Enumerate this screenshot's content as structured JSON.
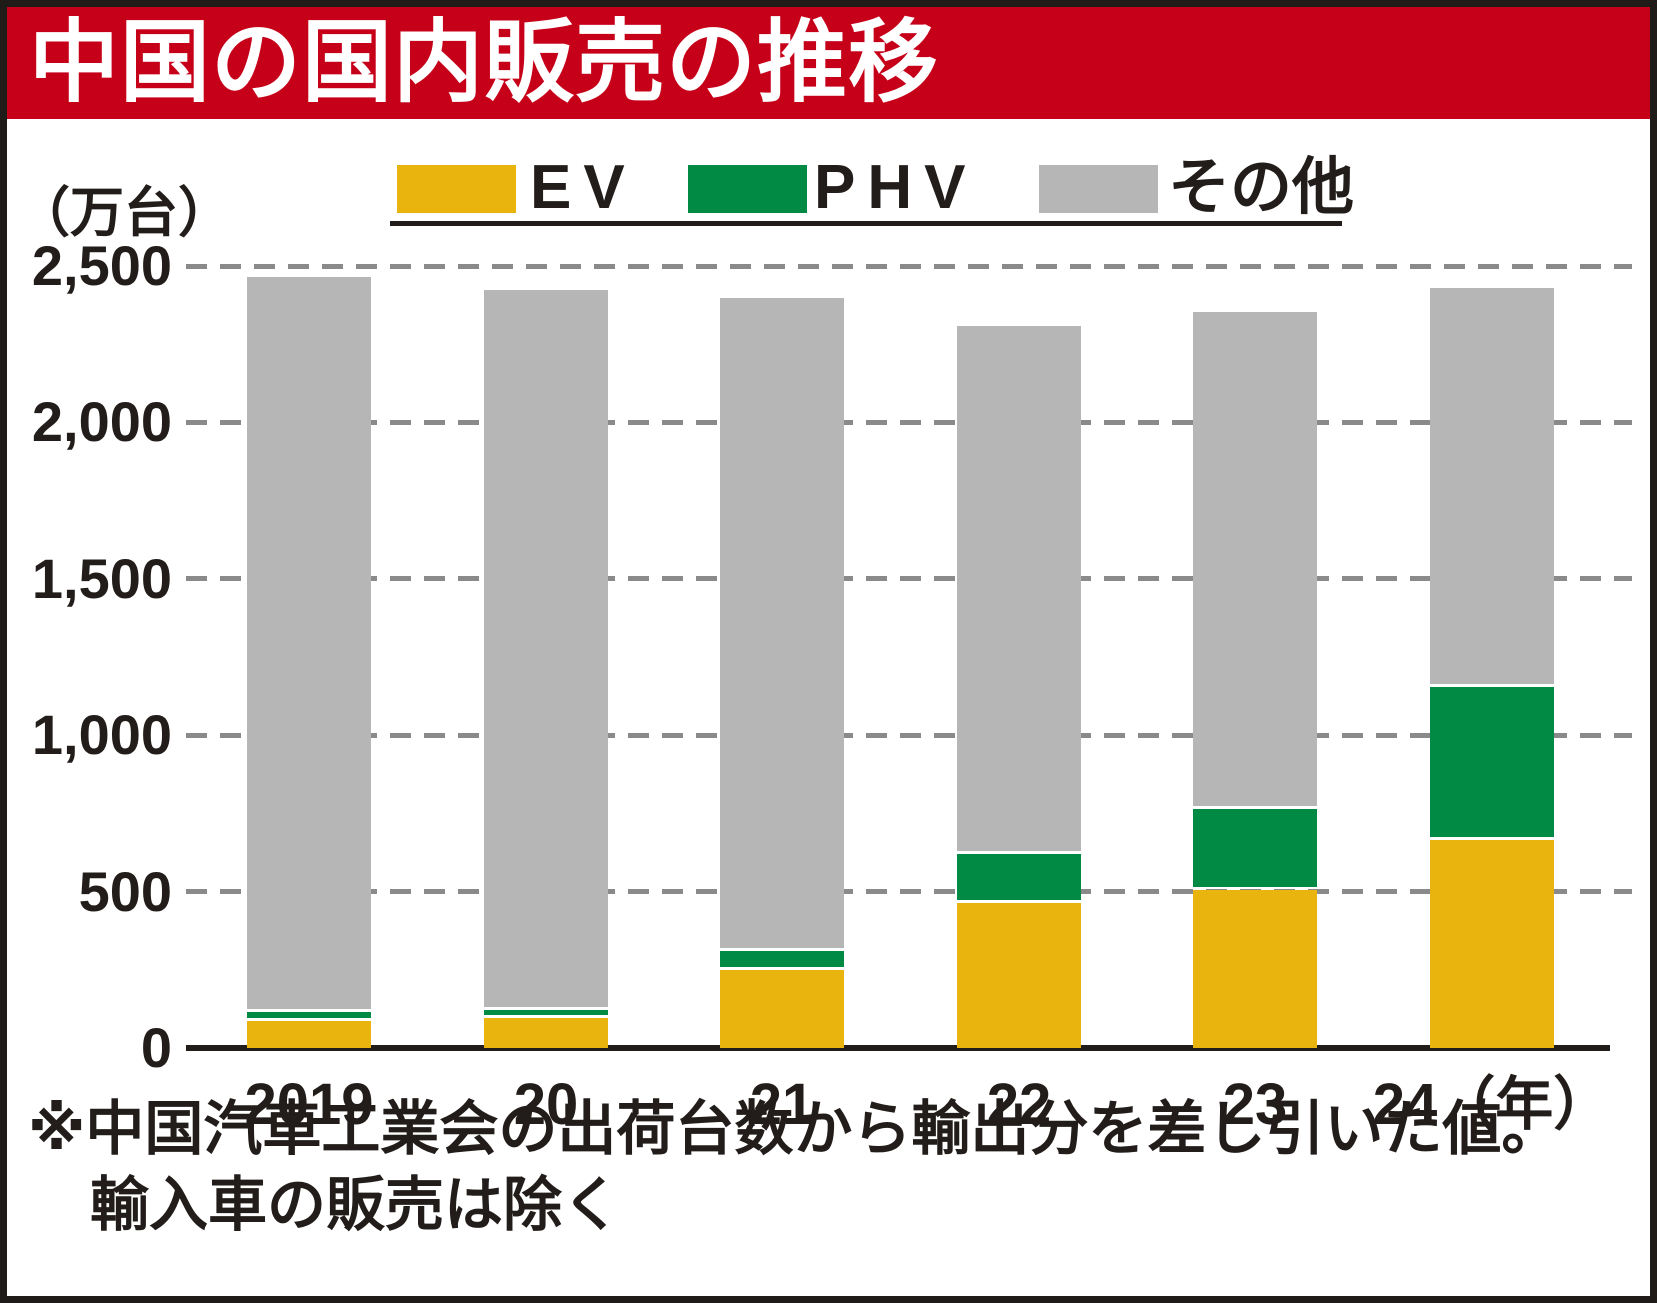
{
  "banner": {
    "title": "中国の国内販売の推移",
    "bg_color": "#C7001A",
    "text_color": "#FFFFFF"
  },
  "unit_label": "（万台）",
  "legend": {
    "items": [
      {
        "label": "EV",
        "color": "#E9B40E"
      },
      {
        "label": "PHV",
        "color": "#008A43"
      },
      {
        "label": "その他",
        "color": "#B6B6B7"
      }
    ]
  },
  "chart_data": {
    "type": "bar",
    "stacked": true,
    "title": "中国の国内販売の推移",
    "ylabel": "（万台）",
    "xlabel": "年",
    "categories": [
      "2019",
      "20",
      "21",
      "22",
      "23",
      "24（年）"
    ],
    "series": [
      {
        "name": "EV",
        "color": "#E9B40E",
        "values": [
          85,
          95,
          250,
          465,
          505,
          665
        ]
      },
      {
        "name": "PHV",
        "color": "#008A43",
        "values": [
          20,
          18,
          50,
          145,
          250,
          480
        ]
      },
      {
        "name": "その他",
        "color": "#B6B6B7",
        "values": [
          2340,
          2290,
          2080,
          1680,
          1580,
          1265
        ]
      }
    ],
    "totals": [
      2445,
      2403,
      2380,
      2290,
      2335,
      2410
    ],
    "ylim": [
      0,
      2500
    ],
    "yticks": [
      0,
      500,
      1000,
      1500,
      2000,
      2500
    ],
    "ytick_labels": [
      "0",
      "500",
      "1,000",
      "1,500",
      "2,000",
      "2,500"
    ],
    "grid": "horizontal-dashed",
    "legend_position": "top",
    "grid_color": "#8A8A8A",
    "axis_color": "#221D1A"
  },
  "footnote": {
    "line1": "※中国汽車工業会の出荷台数から輸出分を差し引いた値。",
    "line2": "輸入車の販売は除く"
  }
}
